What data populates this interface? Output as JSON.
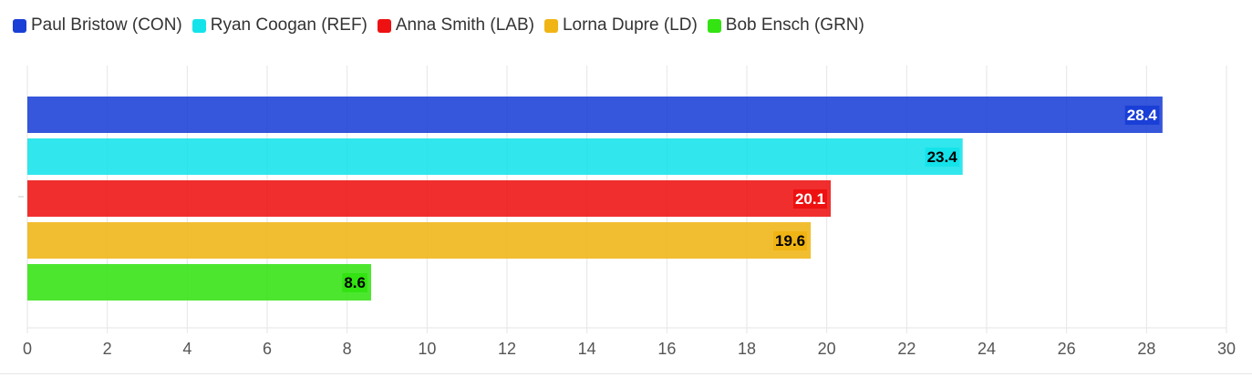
{
  "chart_data": {
    "type": "bar",
    "orientation": "horizontal",
    "title": "",
    "xlabel": "",
    "ylabel": "",
    "xlim": [
      0,
      30
    ],
    "ticks": [
      "0",
      "2",
      "4",
      "6",
      "8",
      "10",
      "12",
      "14",
      "16",
      "18",
      "20",
      "22",
      "24",
      "26",
      "28",
      "30"
    ],
    "grid": true,
    "legend_position": "top-left",
    "series": [
      {
        "name": "Paul Bristow (CON)",
        "value": 28.4,
        "label": "28.4",
        "color": "#1a3fd6",
        "label_color": "#ffffff"
      },
      {
        "name": "Ryan Coogan (REF)",
        "value": 23.4,
        "label": "23.4",
        "color": "#14e3ea",
        "label_color": "#000000"
      },
      {
        "name": "Anna Smith (LAB)",
        "value": 20.1,
        "label": "20.1",
        "color": "#ee1111",
        "label_color": "#ffffff"
      },
      {
        "name": "Lorna Dupre (LD)",
        "value": 19.6,
        "label": "19.6",
        "color": "#f0b514",
        "label_color": "#000000"
      },
      {
        "name": "Bob Ensch (GRN)",
        "value": 8.6,
        "label": "8.6",
        "color": "#33e312",
        "label_color": "#000000"
      }
    ]
  }
}
